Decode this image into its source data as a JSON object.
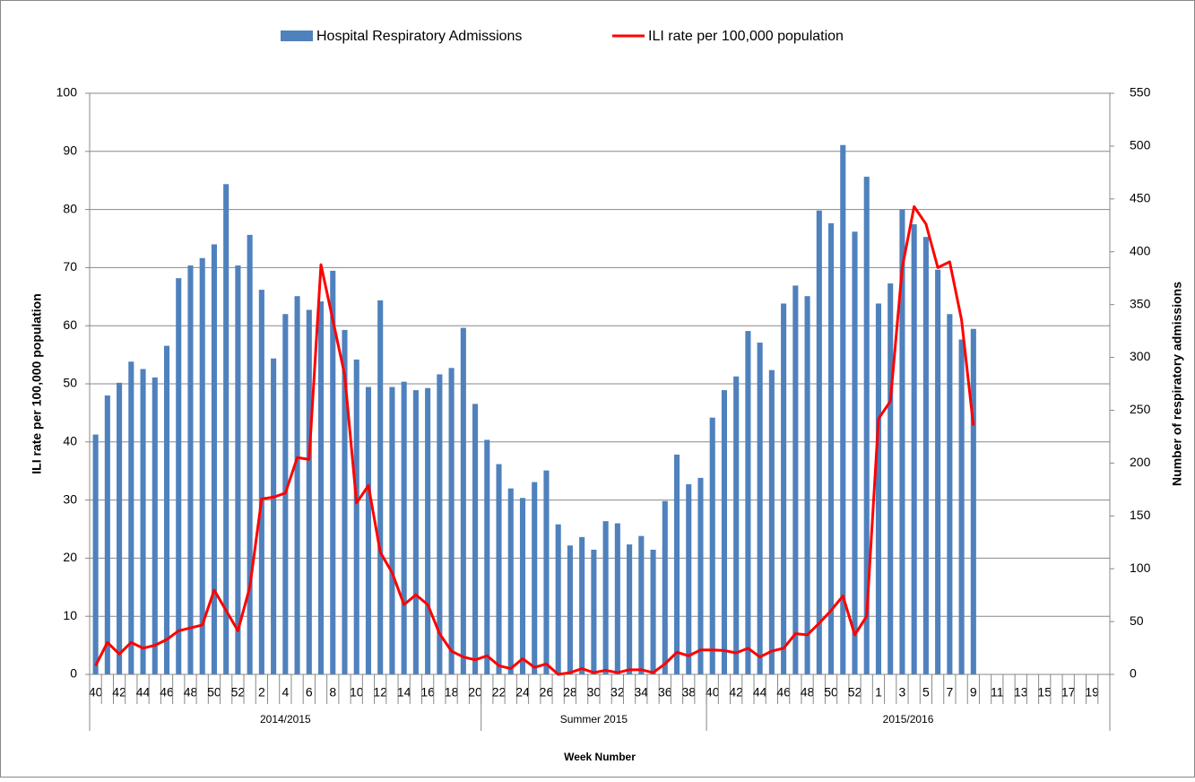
{
  "chart_data": {
    "type": "bar_line",
    "x_label": "Week Number",
    "y_label": "ILI rate per 100,000 population",
    "y2_label": "Number of respiratory admissions",
    "category_groups": [
      {
        "label": "2014/2015",
        "categories": [
          "40",
          null,
          "42",
          null,
          "44",
          null,
          "46",
          null,
          "48",
          null,
          "50",
          null,
          "52",
          null,
          "2",
          null,
          "4",
          null,
          "6",
          null,
          "8",
          null,
          "10",
          null,
          "12",
          null,
          "14",
          null,
          "16",
          null,
          "18",
          null,
          "20"
        ]
      },
      {
        "label": "Summer 2015",
        "categories": [
          null,
          "22",
          null,
          "24",
          null,
          "26",
          null,
          "28",
          null,
          "30",
          null,
          "32",
          null,
          "34",
          null,
          "36",
          null,
          "38",
          null
        ]
      },
      {
        "label": "2015/2016",
        "categories": [
          "40",
          null,
          "42",
          null,
          "44",
          null,
          "46",
          null,
          "48",
          null,
          "50",
          null,
          "52",
          null,
          "1",
          null,
          "3",
          null,
          "5",
          null,
          "7",
          null,
          "9",
          null,
          "11",
          null,
          "13",
          null,
          "15",
          null,
          "17",
          null,
          "19",
          null
        ]
      }
    ],
    "series": [
      {
        "name": "Hospital Respiratory Admissions",
        "type": "bar",
        "axis": "y2",
        "color": "#4f81bd",
        "values": [
          227,
          264,
          276,
          296,
          289,
          281,
          311,
          375,
          387,
          394,
          407,
          464,
          387,
          416,
          364,
          299,
          341,
          358,
          345,
          353,
          382,
          326,
          298,
          272,
          354,
          272,
          277,
          269,
          271,
          284,
          290,
          328,
          256,
          222,
          199,
          176,
          167,
          182,
          193,
          142,
          122,
          130,
          118,
          145,
          143,
          123,
          131,
          118,
          164,
          208,
          180,
          186,
          243,
          269,
          282,
          325,
          314,
          288,
          351,
          368,
          358,
          439,
          427,
          501,
          419,
          471,
          351,
          370,
          440,
          426,
          414,
          383,
          341,
          317,
          327,
          null,
          null,
          null,
          null,
          null,
          null,
          null,
          null,
          null,
          null,
          null
        ]
      },
      {
        "name": "ILI rate per 100,000 population",
        "type": "line",
        "axis": "y",
        "color": "#ff0000",
        "values": [
          1.5,
          5.5,
          3.5,
          5.5,
          4.5,
          5,
          6,
          7.5,
          8,
          8.5,
          14.5,
          11,
          7.5,
          15,
          30.2,
          30.5,
          31.2,
          37.3,
          37,
          70.5,
          61,
          51.5,
          29.5,
          32.5,
          21,
          17.5,
          12,
          13.7,
          12,
          7,
          4,
          3,
          2.5,
          3.2,
          1.5,
          1,
          2.7,
          1.2,
          1.8,
          0,
          0.3,
          1,
          0.3,
          0.7,
          0.3,
          0.8,
          0.8,
          0.3,
          1.8,
          3.8,
          3.2,
          4.2,
          4.2,
          4.1,
          3.7,
          4.5,
          3,
          4,
          4.5,
          7,
          6.8,
          8.8,
          11,
          13.5,
          6.8,
          10,
          44,
          47,
          70,
          80.5,
          77.5,
          70,
          71,
          61,
          42.8,
          null,
          null,
          null,
          null,
          null,
          null,
          null,
          null,
          null,
          null,
          null
        ]
      }
    ],
    "ylim": [
      0,
      100
    ],
    "yticks": [
      0,
      10,
      20,
      30,
      40,
      50,
      60,
      70,
      80,
      90,
      100
    ],
    "y2lim": [
      0,
      550
    ],
    "y2ticks": [
      0,
      50,
      100,
      150,
      200,
      250,
      300,
      350,
      400,
      450,
      500,
      550
    ],
    "grid": true
  }
}
